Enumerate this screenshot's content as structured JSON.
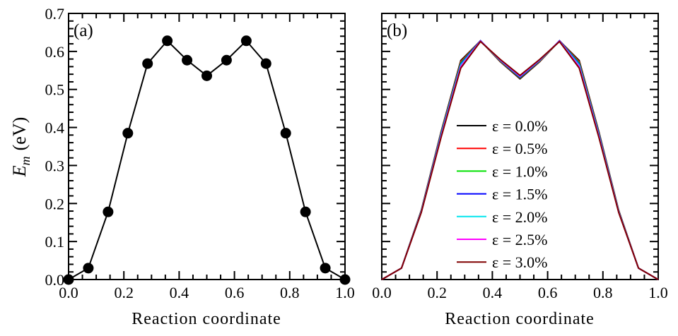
{
  "chart_data": [
    {
      "type": "line",
      "panel_label": "(a)",
      "xlabel": "Reaction coordinate",
      "ylabel": "E_m (eV)",
      "ylabel_parts": {
        "symbol": "E",
        "subscript": "m",
        "unit": "(eV)"
      },
      "xlim": [
        0,
        1
      ],
      "ylim": [
        0,
        0.7
      ],
      "xticks": [
        "0.0",
        "0.2",
        "0.4",
        "0.6",
        "0.8",
        "1.0"
      ],
      "yticks": [
        "0.0",
        "0.1",
        "0.2",
        "0.3",
        "0.4",
        "0.5",
        "0.6",
        "0.7"
      ],
      "markers": true,
      "color": "#000000",
      "x": [
        0,
        0.0714,
        0.1429,
        0.2143,
        0.2857,
        0.3571,
        0.4286,
        0.5,
        0.5714,
        0.6429,
        0.7143,
        0.7857,
        0.8571,
        0.9286,
        1.0
      ],
      "y": [
        0.0,
        0.03,
        0.178,
        0.385,
        0.568,
        0.628,
        0.577,
        0.536,
        0.577,
        0.628,
        0.568,
        0.385,
        0.178,
        0.03,
        0.0
      ]
    },
    {
      "type": "line",
      "panel_label": "(b)",
      "xlabel": "Reaction coordinate",
      "xlim": [
        0,
        1
      ],
      "ylim": [
        0,
        0.7
      ],
      "xticks": [
        "0.0",
        "0.2",
        "0.4",
        "0.6",
        "0.8",
        "1.0"
      ],
      "legend_position": "center",
      "x": [
        0,
        0.0714,
        0.1429,
        0.2143,
        0.2857,
        0.3571,
        0.4286,
        0.5,
        0.5714,
        0.6429,
        0.7143,
        0.7857,
        0.8571,
        0.9286,
        1.0
      ],
      "series": [
        {
          "name": "ε = 0.0%",
          "color": "#000000",
          "y": [
            0,
            0.03,
            0.182,
            0.388,
            0.576,
            0.628,
            0.573,
            0.528,
            0.573,
            0.628,
            0.576,
            0.388,
            0.182,
            0.03,
            0
          ]
        },
        {
          "name": "ε = 0.5%",
          "color": "#ff0000",
          "y": [
            0,
            0.03,
            0.181,
            0.386,
            0.573,
            0.628,
            0.574,
            0.53,
            0.574,
            0.628,
            0.573,
            0.386,
            0.181,
            0.03,
            0
          ]
        },
        {
          "name": "ε = 1.0%",
          "color": "#00e000",
          "y": [
            0,
            0.03,
            0.18,
            0.384,
            0.57,
            0.628,
            0.575,
            0.531,
            0.575,
            0.628,
            0.57,
            0.384,
            0.18,
            0.03,
            0
          ]
        },
        {
          "name": "ε = 1.5%",
          "color": "#0000ff",
          "y": [
            0,
            0.03,
            0.179,
            0.382,
            0.567,
            0.628,
            0.576,
            0.532,
            0.576,
            0.628,
            0.567,
            0.382,
            0.179,
            0.03,
            0
          ]
        },
        {
          "name": "ε = 2.0%",
          "color": "#00e5ee",
          "y": [
            0,
            0.03,
            0.178,
            0.379,
            0.564,
            0.627,
            0.577,
            0.534,
            0.577,
            0.627,
            0.564,
            0.379,
            0.178,
            0.03,
            0
          ]
        },
        {
          "name": "ε = 2.5%",
          "color": "#ff00ff",
          "y": [
            0,
            0.03,
            0.177,
            0.376,
            0.56,
            0.627,
            0.578,
            0.535,
            0.578,
            0.627,
            0.56,
            0.376,
            0.177,
            0.03,
            0
          ]
        },
        {
          "name": "ε = 3.0%",
          "color": "#800000",
          "y": [
            0,
            0.03,
            0.176,
            0.373,
            0.556,
            0.626,
            0.579,
            0.537,
            0.579,
            0.626,
            0.556,
            0.373,
            0.176,
            0.03,
            0
          ]
        }
      ]
    }
  ]
}
